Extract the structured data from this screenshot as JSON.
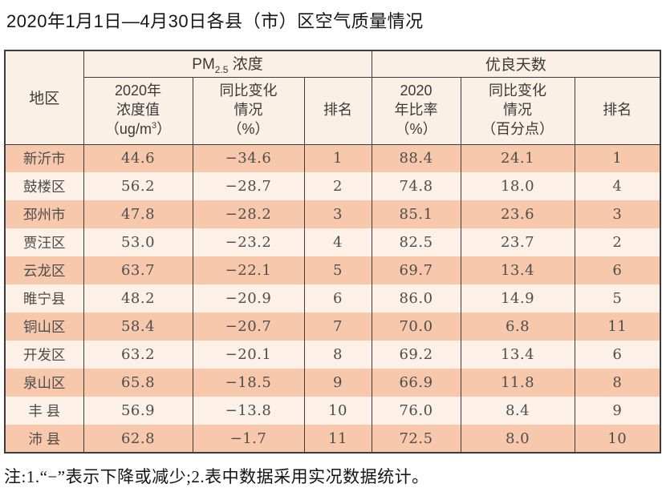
{
  "page": {
    "title": "2020年1月1日—4月30日各县（市）区空气质量情况",
    "footnote": "注:1.“−”表示下降或减少;2.表中数据采用实况数据统计。"
  },
  "colors": {
    "row_odd_bg": "#f8c8ac",
    "row_even_bg": "#fdf1e7",
    "header_bg": "#fbf0e5",
    "border": "#3c3c3c",
    "data_text": "#4d4d4d"
  },
  "table": {
    "headers": {
      "region": "地区",
      "pm_group_prefix": "PM",
      "pm_group_sub": "2.5",
      "pm_group_suffix": " 浓度",
      "good_days_group": "优良天数",
      "conc_line1": "2020年",
      "conc_line2": "浓度值",
      "conc_line3_open": "（ug/m",
      "conc_line3_sup": "3",
      "conc_line3_close": "）",
      "pm_change_line1": "同比变化",
      "pm_change_line2": "情况",
      "pm_change_line3": "（%）",
      "pm_rank": "排名",
      "ratio_line1": "2020",
      "ratio_line2": "年比率",
      "ratio_line3": "（%）",
      "good_change_line1": "同比变化",
      "good_change_line2": "情况",
      "good_change_line3": "（百分点）",
      "good_rank": "排名"
    },
    "rows": [
      {
        "region": "新沂市",
        "pm_value": "44.6",
        "pm_change": "−34.6",
        "pm_rank": "1",
        "good_ratio": "88.4",
        "good_change": "24.1",
        "good_rank": "1"
      },
      {
        "region": "鼓楼区",
        "pm_value": "56.2",
        "pm_change": "−28.7",
        "pm_rank": "2",
        "good_ratio": "74.8",
        "good_change": "18.0",
        "good_rank": "4"
      },
      {
        "region": "邳州市",
        "pm_value": "47.8",
        "pm_change": "−28.2",
        "pm_rank": "3",
        "good_ratio": "85.1",
        "good_change": "23.6",
        "good_rank": "3"
      },
      {
        "region": "贾汪区",
        "pm_value": "53.0",
        "pm_change": "−23.2",
        "pm_rank": "4",
        "good_ratio": "82.5",
        "good_change": "23.7",
        "good_rank": "2"
      },
      {
        "region": "云龙区",
        "pm_value": "63.7",
        "pm_change": "−22.1",
        "pm_rank": "5",
        "good_ratio": "69.7",
        "good_change": "13.4",
        "good_rank": "6"
      },
      {
        "region": "睢宁县",
        "pm_value": "48.2",
        "pm_change": "−20.9",
        "pm_rank": "6",
        "good_ratio": "86.0",
        "good_change": "14.9",
        "good_rank": "5"
      },
      {
        "region": "铜山区",
        "pm_value": "58.4",
        "pm_change": "−20.7",
        "pm_rank": "7",
        "good_ratio": "70.0",
        "good_change": "6.8",
        "good_rank": "11"
      },
      {
        "region": "开发区",
        "pm_value": "63.2",
        "pm_change": "−20.1",
        "pm_rank": "8",
        "good_ratio": "69.2",
        "good_change": "13.4",
        "good_rank": "6"
      },
      {
        "region": "泉山区",
        "pm_value": "65.8",
        "pm_change": "−18.5",
        "pm_rank": "9",
        "good_ratio": "66.9",
        "good_change": "11.8",
        "good_rank": "8"
      },
      {
        "region": "丰 县",
        "pm_value": "56.9",
        "pm_change": "−13.8",
        "pm_rank": "10",
        "good_ratio": "76.0",
        "good_change": "8.4",
        "good_rank": "9"
      },
      {
        "region": "沛 县",
        "pm_value": "62.8",
        "pm_change": "−1.7",
        "pm_rank": "11",
        "good_ratio": "72.5",
        "good_change": "8.0",
        "good_rank": "10"
      }
    ]
  }
}
